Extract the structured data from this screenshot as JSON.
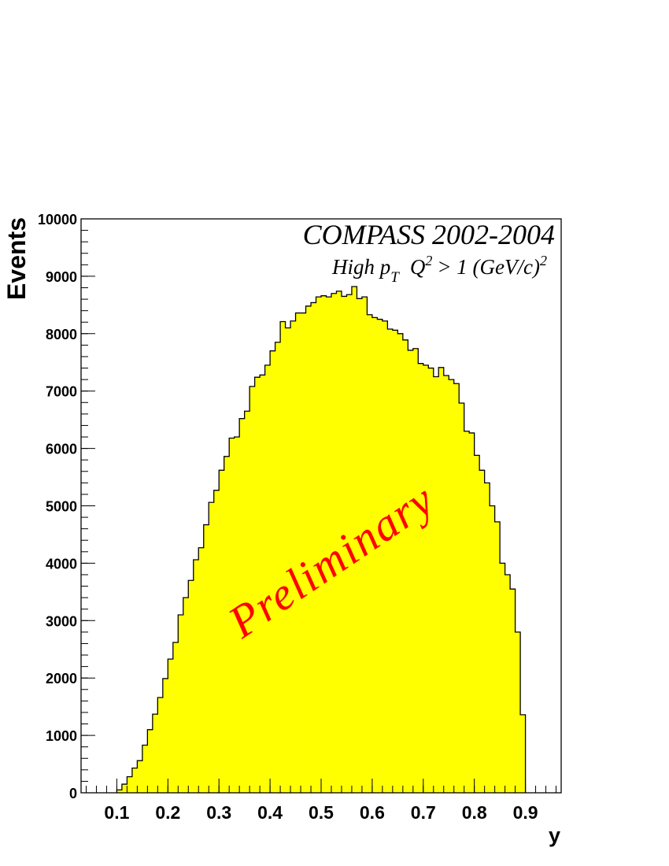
{
  "chart_data": {
    "type": "histogram",
    "title": "COMPASS 2002-2004",
    "subtitle": {
      "parts": [
        "High p",
        "Q",
        "> 1 (GeV/c)"
      ],
      "sub": "T",
      "sup": "2"
    },
    "annotation": "Preliminary",
    "annotation_color": "#ff0000",
    "x_label": "y",
    "y_label": "Events",
    "color": "#ffff00",
    "bins": [
      0.1,
      0.11,
      0.12,
      0.13,
      0.14,
      0.15,
      0.16,
      0.17,
      0.18,
      0.19,
      0.2,
      0.21,
      0.22,
      0.23,
      0.24,
      0.25,
      0.26,
      0.27,
      0.28,
      0.29,
      0.3,
      0.31,
      0.32,
      0.33,
      0.34,
      0.35,
      0.36,
      0.37,
      0.38,
      0.39,
      0.4,
      0.41,
      0.42,
      0.43,
      0.44,
      0.45,
      0.46,
      0.47,
      0.48,
      0.49,
      0.5,
      0.51,
      0.52,
      0.53,
      0.54,
      0.55,
      0.56,
      0.57,
      0.58,
      0.59,
      0.6,
      0.61,
      0.62,
      0.63,
      0.64,
      0.65,
      0.66,
      0.67,
      0.68,
      0.69,
      0.7,
      0.71,
      0.72,
      0.73,
      0.74,
      0.75,
      0.76,
      0.77,
      0.78,
      0.79,
      0.8,
      0.81,
      0.82,
      0.83,
      0.84,
      0.85,
      0.86,
      0.87,
      0.88,
      0.89,
      0.9
    ],
    "values": [
      50,
      150,
      280,
      430,
      560,
      830,
      1100,
      1370,
      1660,
      1990,
      2330,
      2620,
      3100,
      3400,
      3700,
      4060,
      4270,
      4670,
      5060,
      5270,
      5620,
      5860,
      6180,
      6200,
      6520,
      6650,
      7080,
      7240,
      7280,
      7450,
      7700,
      7850,
      8210,
      8100,
      8220,
      8360,
      8360,
      8480,
      8540,
      8640,
      8660,
      8640,
      8700,
      8740,
      8650,
      8680,
      8820,
      8610,
      8640,
      8330,
      8280,
      8250,
      8220,
      8080,
      8060,
      8000,
      7890,
      7710,
      7740,
      7480,
      7450,
      7400,
      7250,
      7410,
      7270,
      7200,
      7130,
      6790,
      6300,
      6270,
      5880,
      5620,
      5400,
      5000,
      4720,
      4000,
      3800,
      3550,
      2800,
      1360
    ],
    "xlim": [
      0.03,
      0.97
    ],
    "ylim": [
      0,
      10000
    ],
    "xticks": [
      0.1,
      0.2,
      0.3,
      0.4,
      0.5,
      0.6,
      0.7,
      0.8,
      0.9
    ],
    "yticks": [
      0,
      1000,
      2000,
      3000,
      4000,
      5000,
      6000,
      7000,
      8000,
      9000,
      10000
    ]
  }
}
